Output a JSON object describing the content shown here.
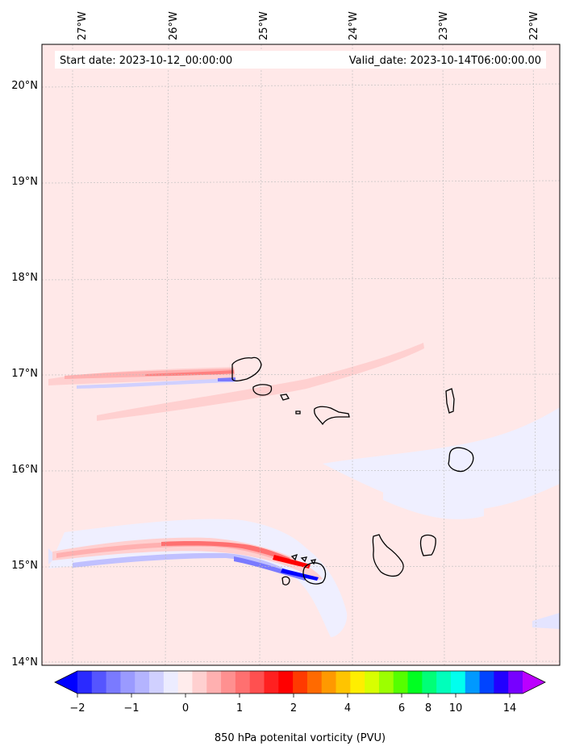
{
  "header": {
    "start_date": "Start date: 2023-10-12_00:00:00",
    "valid_date": "Valid_date: 2023-10-14T06:00:00.00"
  },
  "map": {
    "lon_labels": [
      "27°W",
      "26°W",
      "25°W",
      "24°W",
      "23°W",
      "22°W"
    ],
    "lat_labels": [
      "20°N",
      "19°N",
      "18°N",
      "17°N",
      "16°N",
      "15°N",
      "14°N"
    ],
    "background_color": "#ffe8e8",
    "features": [
      "cabo-verde-islands",
      "pv-streak-north",
      "pv-streak-south"
    ]
  },
  "colorbar": {
    "label": "850 hPa potenital vorticity (PVU)",
    "tick_labels": [
      "−2",
      "−1",
      "0",
      "1",
      "2",
      "4",
      "6",
      "8",
      "10",
      "14"
    ],
    "colors": [
      "#0000ff",
      "#2a2aff",
      "#5555ff",
      "#7a7aff",
      "#9a9aff",
      "#b4b4ff",
      "#d0d0ff",
      "#ececff",
      "#ffecec",
      "#ffd0d0",
      "#ffb0b0",
      "#ff9090",
      "#ff7070",
      "#ff5050",
      "#ff2020",
      "#ff0000",
      "#ff3a00",
      "#ff6a00",
      "#ff9900",
      "#ffc400",
      "#ffee00",
      "#d8ff00",
      "#9cff00",
      "#55ff00",
      "#00ff22",
      "#00ff77",
      "#00ffbb",
      "#00ffee",
      "#0099ff",
      "#0044ff",
      "#2200ff",
      "#7700ff",
      "#bb00ff"
    ],
    "extend": "both"
  }
}
